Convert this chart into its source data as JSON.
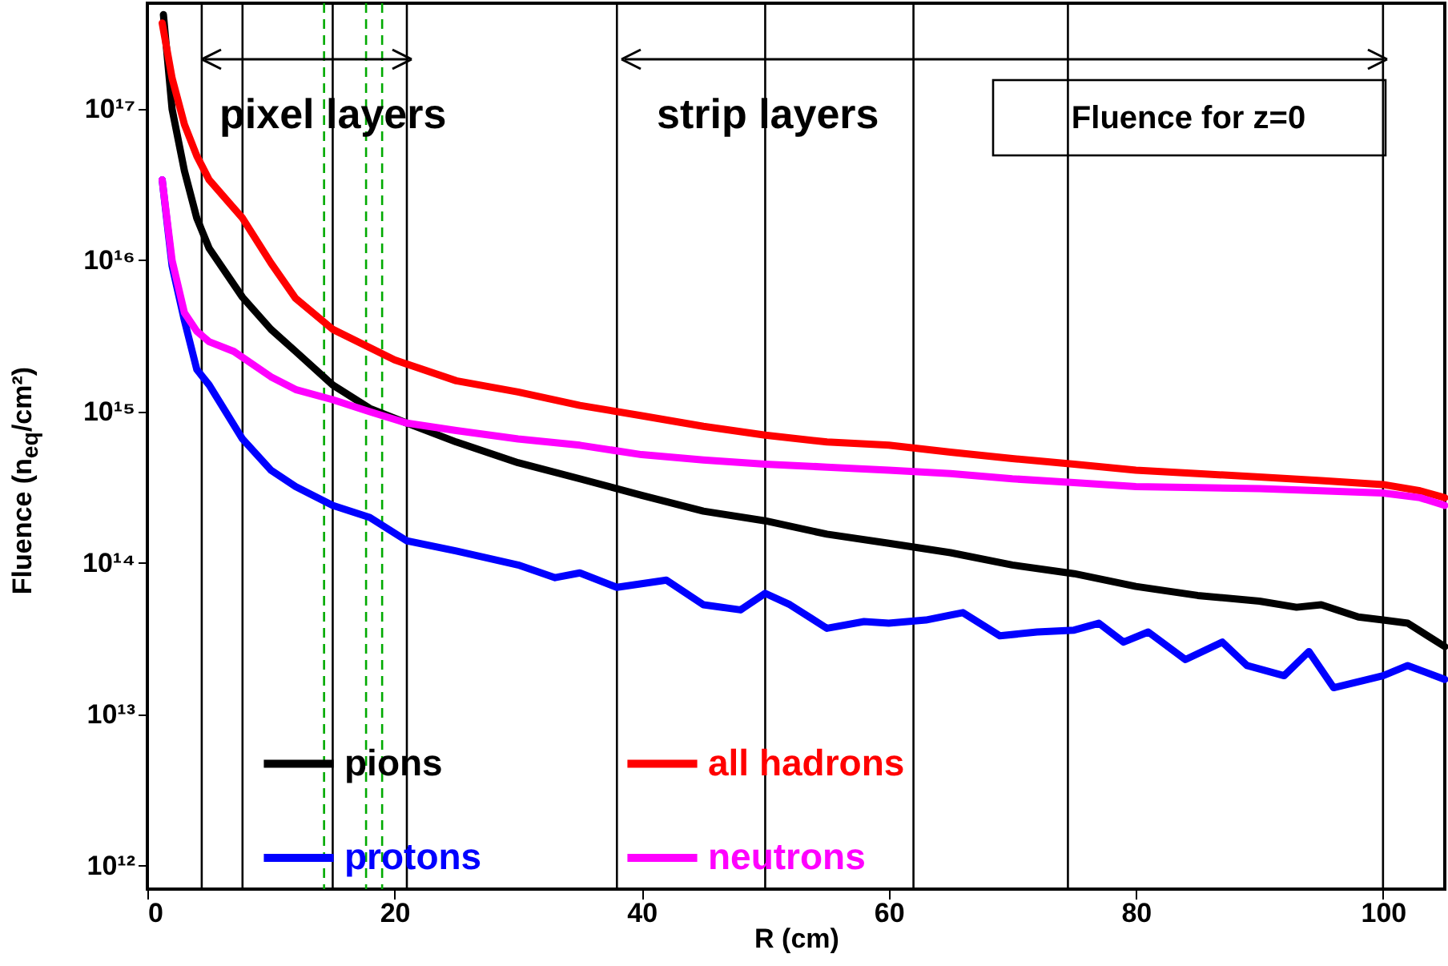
{
  "chart_data": {
    "type": "line",
    "xlabel": "R (cm)",
    "ylabel": "Fluence (n$_{eq}$/cm²)",
    "log": "y",
    "xlim": [
      0,
      105
    ],
    "xticks": [
      0,
      20,
      40,
      60,
      80,
      100
    ],
    "ylim": [
      700000000000.0,
      5e+17
    ],
    "yticks": [
      {
        "value": 1000000000000.0,
        "label": "10¹²"
      },
      {
        "value": 10000000000000.0,
        "label": "10¹³"
      },
      {
        "value": 100000000000000.0,
        "label": "10¹⁴"
      },
      {
        "value": 1000000000000000.0,
        "label": "10¹⁵"
      },
      {
        "value": 1e+16,
        "label": "10¹⁶"
      },
      {
        "value": 1e+17,
        "label": "10¹⁷"
      }
    ],
    "legend": "bottom left",
    "grid": false,
    "series": [
      {
        "name": "pions",
        "color": "#000000",
        "x": [
          1.3,
          2,
          3,
          4,
          5,
          7.7,
          10,
          12,
          15,
          18,
          21,
          25,
          30,
          35,
          40,
          45,
          50,
          55,
          60,
          65,
          70,
          75,
          80,
          85,
          90,
          93,
          95,
          98,
          100,
          102,
          105
        ],
        "values": [
          4.2e+17,
          1e+17,
          3.9e+16,
          1.9e+16,
          1.2e+16,
          5700000000000000.0,
          3500000000000000.0,
          2500000000000000.0,
          1500000000000000.0,
          1050000000000000.0,
          840000000000000.0,
          630000000000000.0,
          460000000000000.0,
          360000000000000.0,
          280000000000000.0,
          220000000000000.0,
          190000000000000.0,
          155000000000000.0,
          135000000000000.0,
          117000000000000.0,
          97000000000000.0,
          85000000000000.0,
          70000000000000.0,
          61000000000000.0,
          56000000000000.0,
          51000000000000.0,
          53000000000000.0,
          44000000000000.0,
          42000000000000.0,
          40000000000000.0,
          28000000000000.0
        ]
      },
      {
        "name": "all hadrons",
        "color": "#ff0000",
        "x": [
          1.2,
          2,
          3,
          4,
          5,
          7.7,
          10,
          12,
          15,
          20,
          25,
          30,
          35,
          40,
          45,
          50,
          55,
          60,
          65,
          70,
          75,
          80,
          85,
          90,
          95,
          100,
          103,
          105
        ],
        "values": [
          3.7e+17,
          1.6e+17,
          7.9e+16,
          4.9e+16,
          3.4e+16,
          1.9e+16,
          9600000000000000.0,
          5600000000000000.0,
          3500000000000000.0,
          2200000000000000.0,
          1600000000000000.0,
          1350000000000000.0,
          1100000000000000.0,
          940000000000000.0,
          800000000000000.0,
          700000000000000.0,
          630000000000000.0,
          600000000000000.0,
          540000000000000.0,
          490000000000000.0,
          450000000000000.0,
          410000000000000.0,
          390000000000000.0,
          370000000000000.0,
          350000000000000.0,
          330000000000000.0,
          300000000000000.0,
          270000000000000.0
        ]
      },
      {
        "name": "protons",
        "color": "#0000ff",
        "x": [
          1.2,
          2,
          3,
          4,
          5,
          7.7,
          10,
          12,
          15,
          18,
          21,
          25,
          30,
          33,
          35,
          38,
          42,
          45,
          48,
          50,
          52,
          55,
          58,
          60,
          63,
          66,
          69,
          72,
          75,
          77,
          79,
          81,
          84,
          87,
          89,
          92,
          94,
          96,
          100,
          102,
          105
        ],
        "values": [
          3.4e+16,
          9200000000000000.0,
          4000000000000000.0,
          1900000000000000.0,
          1500000000000000.0,
          660000000000000.0,
          410000000000000.0,
          320000000000000.0,
          240000000000000.0,
          200000000000000.0,
          140000000000000.0,
          120000000000000.0,
          97000000000000.0,
          80000000000000.0,
          86000000000000.0,
          69000000000000.0,
          77000000000000.0,
          53000000000000.0,
          49000000000000.0,
          63000000000000.0,
          53000000000000.0,
          37000000000000.0,
          41000000000000.0,
          40000000000000.0,
          42000000000000.0,
          47000000000000.0,
          33000000000000.0,
          35000000000000.0,
          36000000000000.0,
          40000000000000.0,
          30000000000000.0,
          35000000000000.0,
          23000000000000.0,
          30000000000000.0,
          21000000000000.0,
          18000000000000.0,
          26000000000000.0,
          15000000000000.0,
          18000000000000.0,
          21000000000000.0,
          17000000000000.0
        ]
      },
      {
        "name": "neutrons",
        "color": "#ff00ff",
        "x": [
          1.2,
          2,
          3,
          4,
          5,
          7,
          10,
          12,
          15,
          18,
          21,
          25,
          30,
          35,
          40,
          45,
          50,
          55,
          60,
          65,
          70,
          75,
          80,
          90,
          100,
          103,
          105
        ],
        "values": [
          3.4e+16,
          1e+16,
          4500000000000000.0,
          3400000000000000.0,
          2900000000000000.0,
          2500000000000000.0,
          1700000000000000.0,
          1400000000000000.0,
          1200000000000000.0,
          1000000000000000.0,
          840000000000000.0,
          750000000000000.0,
          660000000000000.0,
          600000000000000.0,
          520000000000000.0,
          480000000000000.0,
          450000000000000.0,
          430000000000000.0,
          410000000000000.0,
          390000000000000.0,
          360000000000000.0,
          340000000000000.0,
          320000000000000.0,
          310000000000000.0,
          290000000000000.0,
          270000000000000.0,
          240000000000000.0
        ]
      }
    ],
    "ref_lines": [
      {
        "axis": "x",
        "value": 4.4,
        "color": "#000000",
        "line_style": "solid"
      },
      {
        "axis": "x",
        "value": 7.7,
        "color": "#000000",
        "line_style": "solid"
      },
      {
        "axis": "x",
        "value": 15,
        "color": "#000000",
        "line_style": "solid"
      },
      {
        "axis": "x",
        "value": 21,
        "color": "#000000",
        "line_style": "solid"
      },
      {
        "axis": "x",
        "value": 38,
        "color": "#000000",
        "line_style": "solid"
      },
      {
        "axis": "x",
        "value": 50,
        "color": "#000000",
        "line_style": "solid"
      },
      {
        "axis": "x",
        "value": 62,
        "color": "#000000",
        "line_style": "solid"
      },
      {
        "axis": "x",
        "value": 74.5,
        "color": "#000000",
        "line_style": "solid"
      },
      {
        "axis": "x",
        "value": 100,
        "color": "#000000",
        "line_style": "solid"
      },
      {
        "axis": "x",
        "value": 14.3,
        "color": "#00aa00",
        "line_style": "dashed"
      },
      {
        "axis": "x",
        "value": 17.7,
        "color": "#00aa00",
        "line_style": "dashed"
      },
      {
        "axis": "x",
        "value": 19,
        "color": "#00aa00",
        "line_style": "dashed"
      }
    ],
    "annotations": [
      "pixel layers",
      "strip layers",
      "Fluence for z=0"
    ]
  }
}
